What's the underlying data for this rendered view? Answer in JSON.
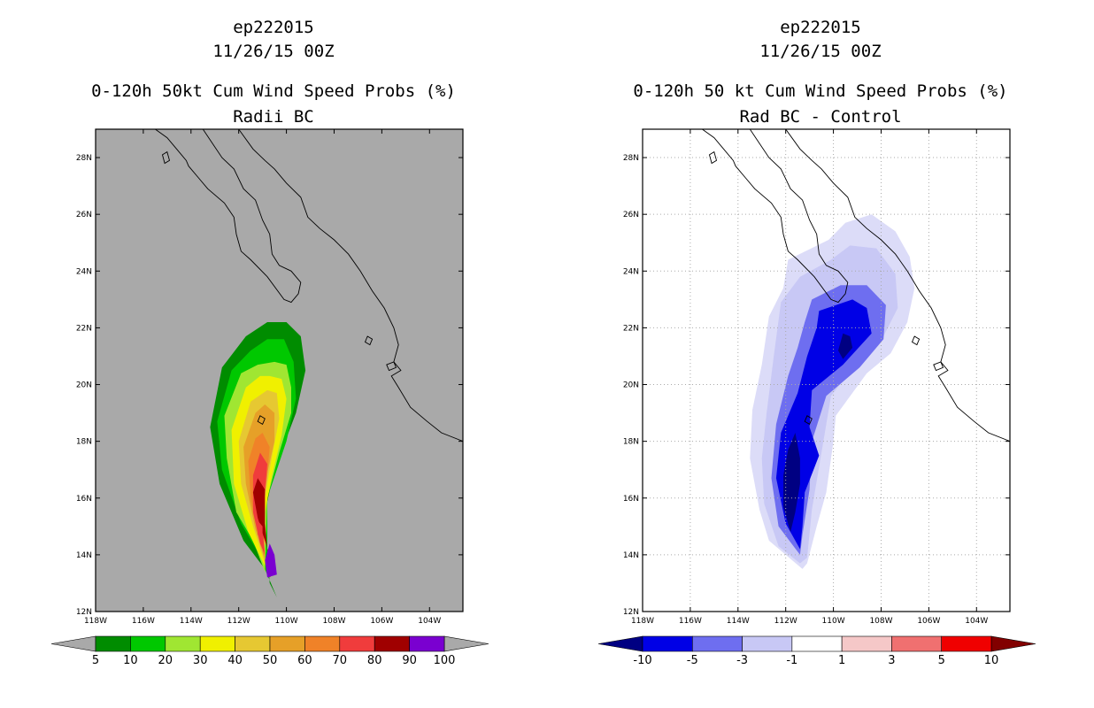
{
  "chart_data": [
    {
      "type": "heatmap",
      "title": [
        "ep222015",
        "11/26/15 00Z",
        "0-120h 50kt Cum Wind Speed Probs (%)",
        "Radii BC"
      ],
      "xlabel": "",
      "ylabel": "",
      "xlim": [
        118,
        102.6
      ],
      "ylim": [
        12,
        29
      ],
      "x_ticks": [
        "118W",
        "116W",
        "114W",
        "112W",
        "110W",
        "108W",
        "106W",
        "104W"
      ],
      "y_ticks": [
        "12N",
        "14N",
        "16N",
        "18N",
        "20N",
        "22N",
        "24N",
        "26N",
        "28N"
      ],
      "grid": false,
      "background_color": "#a9a9a9",
      "colorbar": {
        "levels": [
          "5",
          "10",
          "20",
          "30",
          "40",
          "50",
          "60",
          "70",
          "80",
          "90",
          "100"
        ],
        "colors": [
          "#008c00",
          "#00c800",
          "#a0e632",
          "#f0f000",
          "#e6c832",
          "#e6a028",
          "#f08228",
          "#f03c3c",
          "#a00000",
          "#7a00d0"
        ],
        "under_color": "#a9a9a9",
        "over_color": "#a9a9a9"
      }
    },
    {
      "type": "heatmap",
      "title": [
        "ep222015",
        "11/26/15 00Z",
        "0-120h 50 kt Cum Wind Speed Probs (%)",
        "Rad BC - Control"
      ],
      "xlabel": "",
      "ylabel": "",
      "xlim": [
        118,
        102.6
      ],
      "ylim": [
        12,
        29
      ],
      "x_ticks": [
        "118W",
        "116W",
        "114W",
        "112W",
        "110W",
        "108W",
        "106W",
        "104W"
      ],
      "y_ticks": [
        "12N",
        "14N",
        "16N",
        "18N",
        "20N",
        "22N",
        "24N",
        "26N",
        "28N"
      ],
      "grid": true,
      "background_color": "#ffffff",
      "colorbar": {
        "levels": [
          "-10",
          "-5",
          "-3",
          "-1",
          "1",
          "3",
          "5",
          "10"
        ],
        "colors": [
          "#0000e6",
          "#6e6ef0",
          "#c8c8f5",
          "#ffffff",
          "#f5c8c8",
          "#f07070",
          "#f00000"
        ],
        "under_color": "#000082",
        "over_color": "#820000"
      }
    }
  ]
}
